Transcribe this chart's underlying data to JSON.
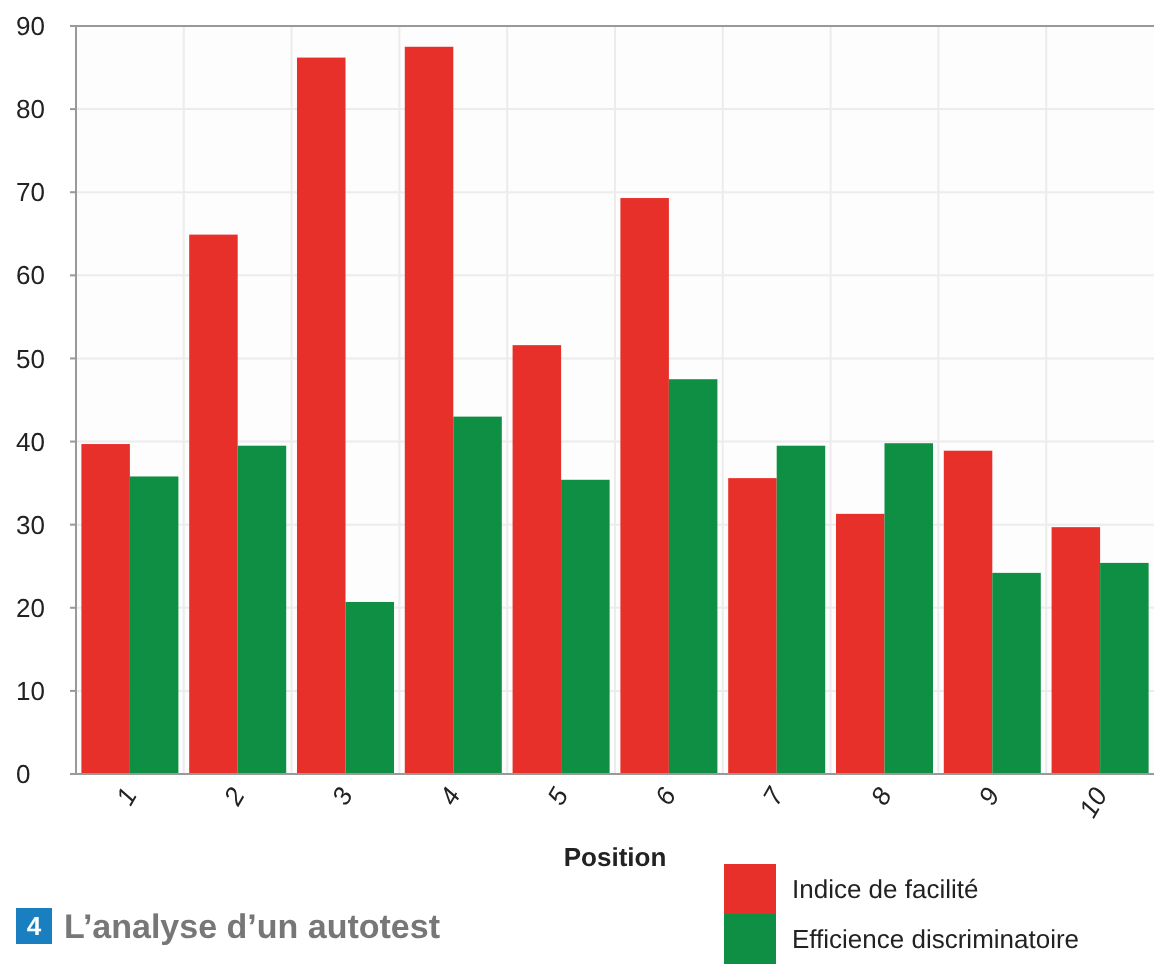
{
  "chart_data": {
    "type": "bar",
    "title": "4 L’analyse d’un autotest",
    "xlabel": "Position",
    "categories": [
      "1",
      "2",
      "3",
      "4",
      "5",
      "6",
      "7",
      "8",
      "9",
      "10"
    ],
    "series": [
      {
        "name": "Indice de facilité",
        "color": "#e8302a",
        "values": [
          39.7,
          64.9,
          86.2,
          87.5,
          51.6,
          69.3,
          35.6,
          31.3,
          38.9,
          29.7
        ]
      },
      {
        "name": "Efficience discriminatoire",
        "color": "#0f8f43",
        "values": [
          35.8,
          39.5,
          20.7,
          43.0,
          35.4,
          47.5,
          39.5,
          39.8,
          24.2,
          25.4
        ]
      }
    ],
    "ylim": [
      0,
      90
    ],
    "yticks": [
      0,
      10,
      20,
      30,
      40,
      50,
      60,
      70,
      80,
      90
    ],
    "grid": true,
    "legend": "bottom right"
  }
}
